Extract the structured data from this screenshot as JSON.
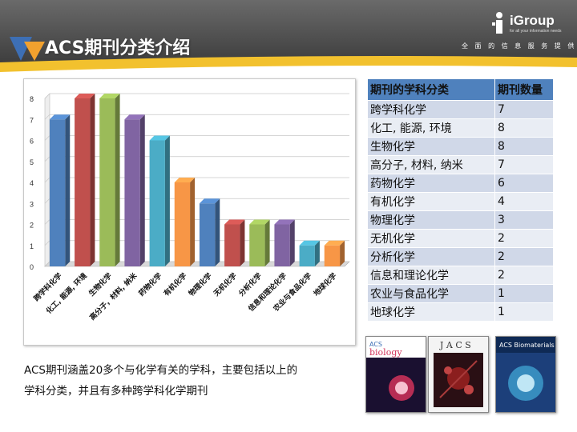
{
  "slide": {
    "title": "ACS期刊分类介绍",
    "brand_name": "iGroup",
    "brand_sub": "for all your information needs",
    "brand_tagline": "全 面 的 信 息 服 务 提 供 商",
    "caption_line1": "ACS期刊涵盖20多个与化学有关的学科，主要包括以上的",
    "caption_line2": "学科分类，并且有多种跨学科化学期刊",
    "colors": {
      "header": "#4a4a4a",
      "band": "#f2c12e",
      "table_header": "#4f81bd",
      "row_odd": "#d0d8e8",
      "row_even": "#e9edf4"
    }
  },
  "chart_data": {
    "type": "bar",
    "title": "",
    "xlabel": "",
    "ylabel": "",
    "ylim": [
      0,
      8
    ],
    "yticks": [
      "0",
      "1",
      "2",
      "3",
      "4",
      "5",
      "6",
      "7",
      "8"
    ],
    "grid": true,
    "legend": "none",
    "categories": [
      "跨学科化学",
      "化工, 能源, 环境",
      "生物化学",
      "高分子，材料, 纳米",
      "药物化学",
      "有机化学",
      "物理化学",
      "无机化学",
      "分析化学",
      "信息和理论化学",
      "农业与食品化学",
      "地球化学"
    ],
    "values": [
      7,
      8,
      8,
      7,
      6,
      4,
      3,
      2,
      2,
      2,
      1,
      1
    ],
    "bar_colors": [
      "#4f81bd",
      "#c0504d",
      "#9bbb59",
      "#8064a2",
      "#4bacc6",
      "#f79646",
      "#4f81bd",
      "#c0504d",
      "#9bbb59",
      "#8064a2",
      "#4bacc6",
      "#f79646"
    ]
  },
  "table": {
    "headers": [
      "期刊的学科分类",
      "期刊数量"
    ],
    "rows": [
      [
        "跨学科化学",
        "7"
      ],
      [
        "化工, 能源, 环境",
        "8"
      ],
      [
        "生物化学",
        "8"
      ],
      [
        "高分子, 材料, 纳米",
        "7"
      ],
      [
        "药物化学",
        "6"
      ],
      [
        "有机化学",
        "4"
      ],
      [
        "物理化学",
        "3"
      ],
      [
        "无机化学",
        "2"
      ],
      [
        "分析化学",
        "2"
      ],
      [
        "信息和理论化学",
        "2"
      ],
      [
        "农业与食品化学",
        "1"
      ],
      [
        "地球化学",
        "1"
      ]
    ]
  },
  "covers": [
    {
      "name": "ACS Chemical Biology",
      "title_text": "ACS Chemical biology",
      "bg": "#1a1030",
      "accent": "#d2325a"
    },
    {
      "name": "JACS",
      "title_text": "J A C S",
      "bg": "#f2f2f2",
      "accent": "#8b1e1e"
    },
    {
      "name": "ACS Biomaterials",
      "title_text": "ACS Biomaterials",
      "bg": "#1c3f7a",
      "accent": "#3fa0d0"
    }
  ]
}
